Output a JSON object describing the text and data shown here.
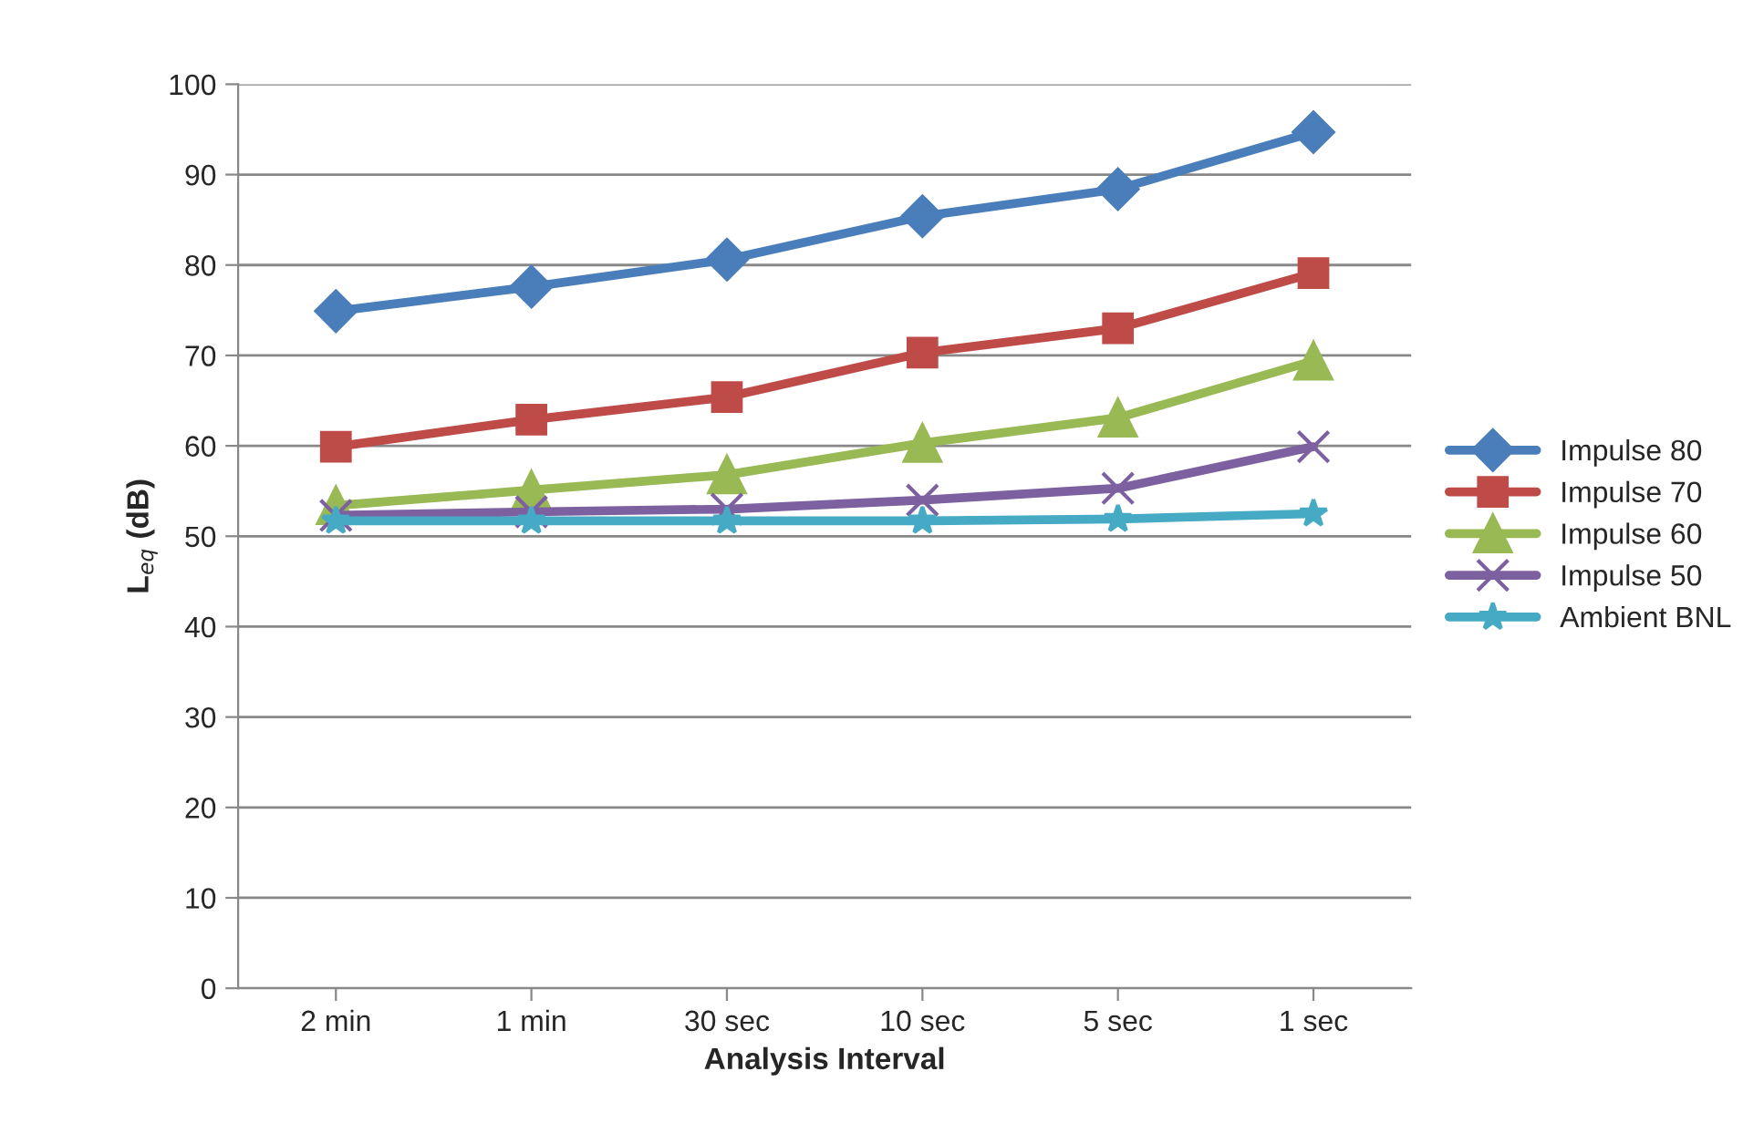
{
  "chart_data": {
    "type": "line",
    "xlabel": "Analysis Interval",
    "ylabel": "L$_{eq}$ (dB)",
    "categories": [
      "2 min",
      "1 min",
      "30 sec",
      "10 sec",
      "5 sec",
      "1 sec"
    ],
    "series": [
      {
        "name": "Impulse 80",
        "color": "#4a7ebb",
        "marker": "diamond",
        "values": [
          74.9,
          77.6,
          80.6,
          85.4,
          88.4,
          94.7
        ]
      },
      {
        "name": "Impulse 70",
        "color": "#be4b48",
        "marker": "square",
        "values": [
          59.9,
          62.9,
          65.4,
          70.3,
          73.0,
          79.1
        ]
      },
      {
        "name": "Impulse 60",
        "color": "#98b954",
        "marker": "triangle",
        "values": [
          53.4,
          55.1,
          56.8,
          60.3,
          63.1,
          69.4
        ]
      },
      {
        "name": "Impulse 50",
        "color": "#7d60a0",
        "marker": "cross",
        "values": [
          52.3,
          52.7,
          53.0,
          54.0,
          55.3,
          59.9
        ]
      },
      {
        "name": "Ambient BNL",
        "color": "#46aac5",
        "marker": "star",
        "values": [
          51.7,
          51.7,
          51.7,
          51.7,
          51.9,
          52.5
        ]
      }
    ],
    "ylim": [
      0,
      100
    ],
    "yticks": [
      0,
      10,
      20,
      30,
      40,
      50,
      60,
      70,
      80,
      90,
      100
    ],
    "grid": "y",
    "legend": "right",
    "line_style": "solid"
  }
}
